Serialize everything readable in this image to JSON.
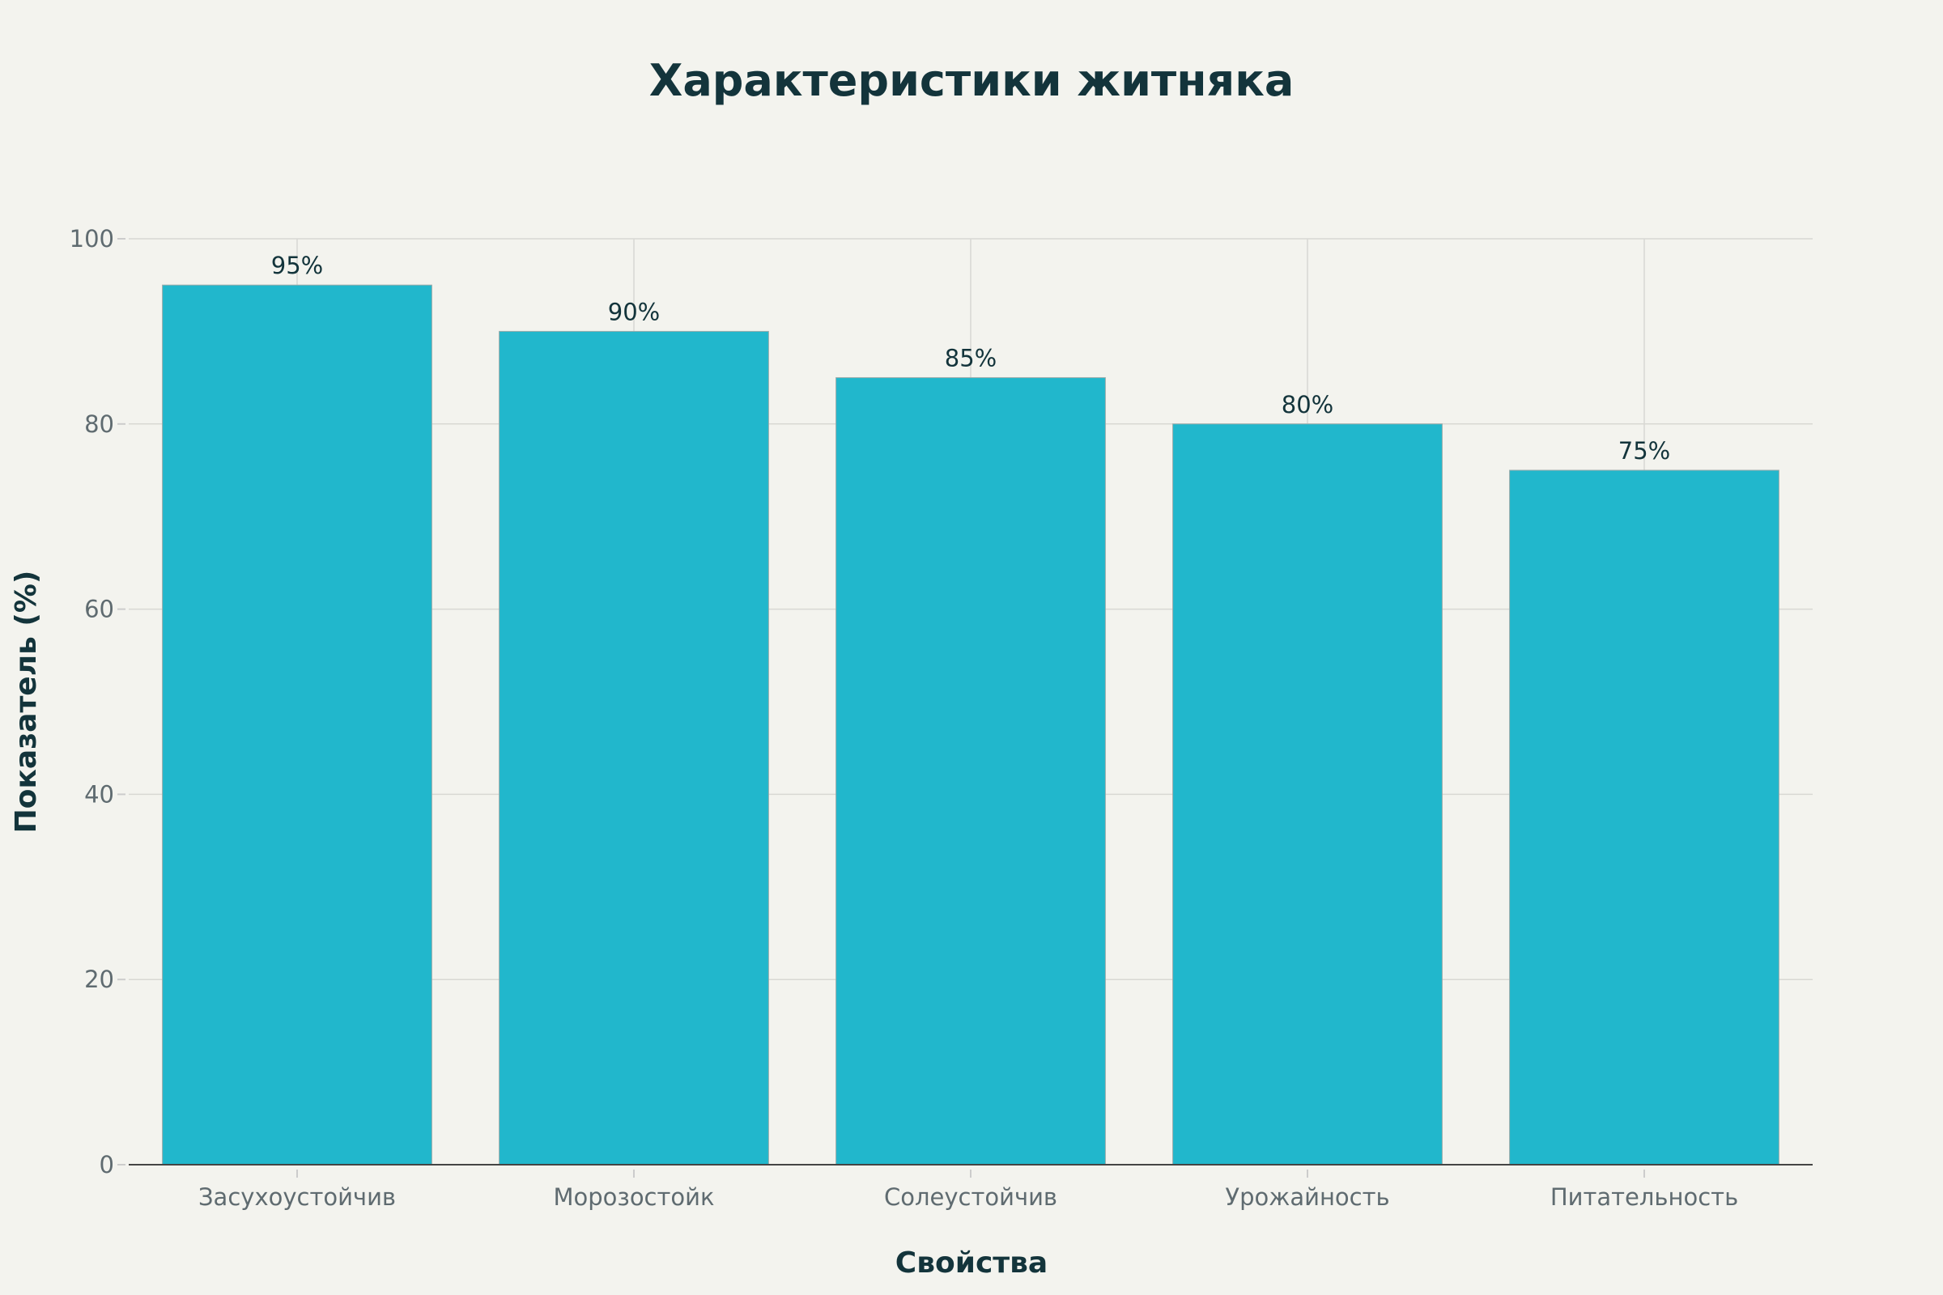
{
  "chart_data": {
    "type": "bar",
    "title": "Характеристики житняка",
    "xlabel": "Свойства",
    "ylabel": "Показатель (%)",
    "categories": [
      "Засухоустойчив",
      "Морозостойк",
      "Солеустойчив",
      "Урожайность",
      "Питательность"
    ],
    "values": [
      95,
      90,
      85,
      80,
      75
    ],
    "data_labels": [
      "95%",
      "90%",
      "85%",
      "80%",
      "75%"
    ],
    "ylim": [
      0,
      100
    ],
    "yticks": [
      0,
      20,
      40,
      60,
      80,
      100
    ],
    "grid": true,
    "legend": "none",
    "colors": {
      "bar": "#21b7cc",
      "background": "#f3f3ee",
      "text": "#13343b",
      "grid": "#d8d8d3"
    }
  }
}
